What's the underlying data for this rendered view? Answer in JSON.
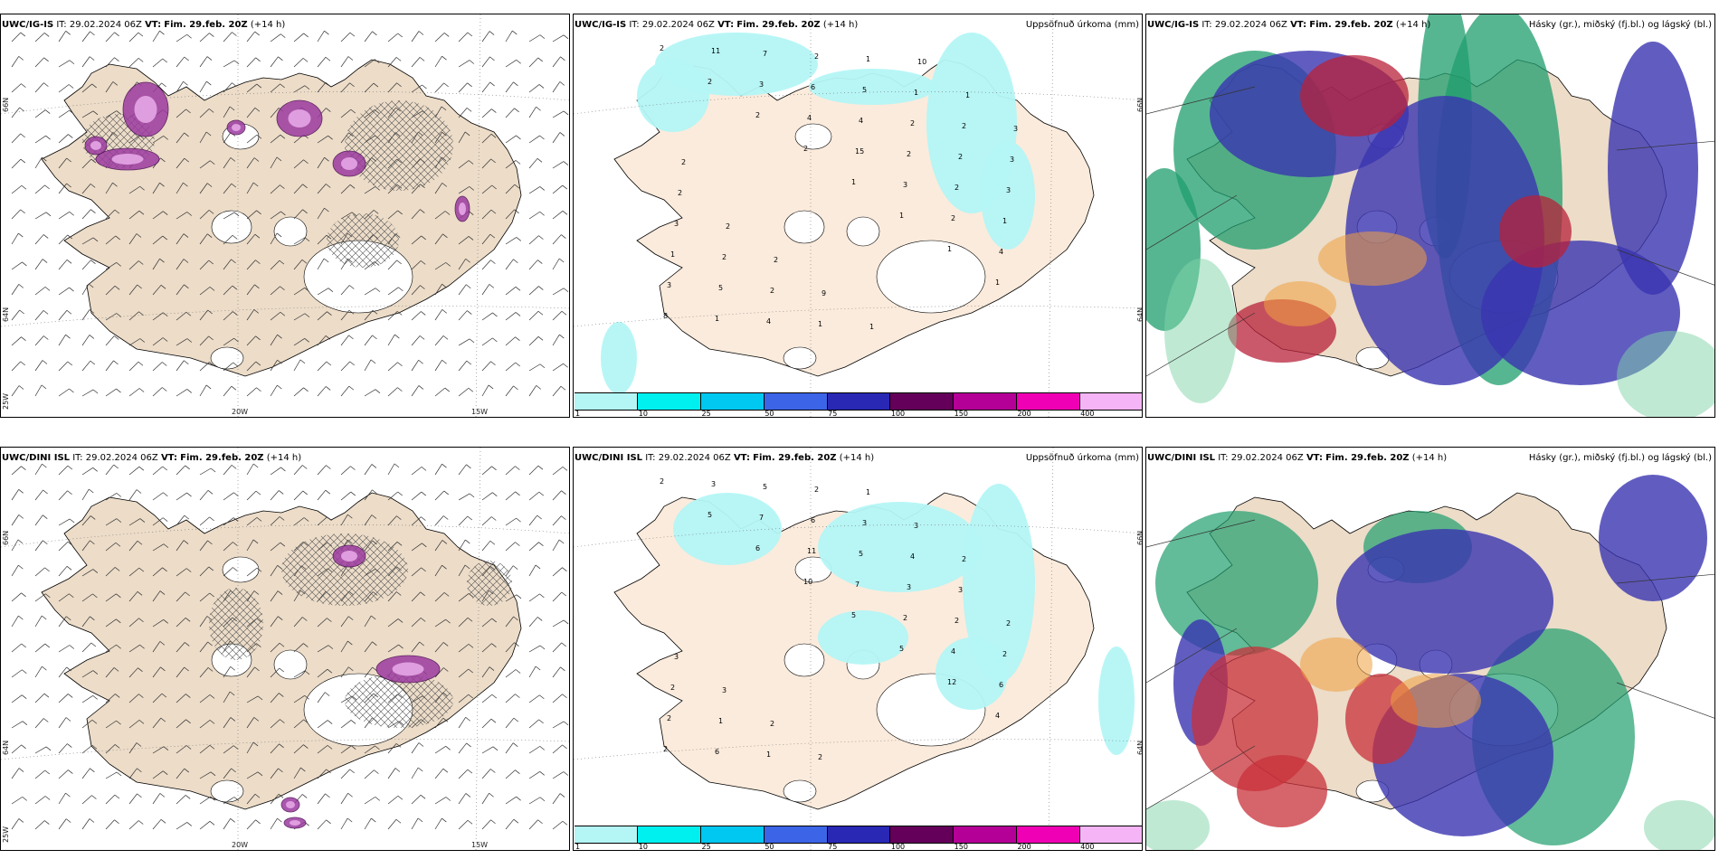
{
  "panels": [
    {
      "model": "UWC/IG-IS",
      "it": "IT: 29.02.2024 06Z",
      "vt_label": "VT:",
      "vt": "Fim. 29.feb. 20Z",
      "lead": "(+14 h)",
      "right": "",
      "lat_labels": [
        "66N",
        "64N",
        "25W"
      ],
      "lon_labels": [
        "20W",
        "15W"
      ]
    },
    {
      "model": "UWC/IG-IS",
      "it": "IT: 29.02.2024 06Z",
      "vt_label": "VT:",
      "vt": "Fim. 29.feb. 20Z",
      "lead": "(+14 h)",
      "right": "Uppsöfnuð úrkoma (mm)",
      "lat_labels": [
        "66N",
        "64N"
      ],
      "lon_labels": []
    },
    {
      "model": "UWC/IG-IS",
      "it": "IT: 29.02.2024 06Z",
      "vt_label": "VT:",
      "vt": "Fim. 29.feb. 20Z",
      "lead": "(+14 h)",
      "right": "Hásky (gr.), miðský (fj.bl.) og lágský (bl.)",
      "lat_labels": [],
      "lon_labels": []
    },
    {
      "model": "UWC/DINI ISL",
      "it": "IT: 29.02.2024 06Z",
      "vt_label": "VT:",
      "vt": "Fim. 29.feb. 20Z",
      "lead": "(+14 h)",
      "right": "",
      "lat_labels": [
        "66N",
        "64N",
        "25W"
      ],
      "lon_labels": [
        "20W",
        "15W"
      ]
    },
    {
      "model": "UWC/DINI ISL",
      "it": "IT: 29.02.2024 06Z",
      "vt_label": "VT:",
      "vt": "Fim. 29.feb. 20Z",
      "lead": "(+14 h)",
      "right": "Uppsöfnuð úrkoma (mm)",
      "lat_labels": [
        "66N",
        "64N"
      ],
      "lon_labels": []
    },
    {
      "model": "UWC/DINI ISL",
      "it": "IT: 29.02.2024 06Z",
      "vt_label": "VT:",
      "vt": "Fim. 29.feb. 20Z",
      "lead": "(+14 h)",
      "right": "Hásky (gr.), miðský (fj.bl.) og lágský (bl.)",
      "lat_labels": [],
      "lon_labels": []
    }
  ],
  "colorbar": {
    "ticks": [
      "1",
      "10",
      "25",
      "50",
      "75",
      "100",
      "150",
      "200",
      "400"
    ],
    "colors": [
      "#b4f5f5",
      "#00f0f0",
      "#00c8f0",
      "#3c64e6",
      "#2828b4",
      "#64005a",
      "#b40096",
      "#f000b4",
      "#f5b4f5"
    ]
  },
  "precip_labels_top": [
    "2",
    "2",
    "2",
    "2",
    "1",
    "1",
    "1",
    "1",
    "8",
    "11",
    "3",
    "4",
    "15",
    "3",
    "2",
    "4",
    "3",
    "1",
    "7",
    "6",
    "4",
    "2",
    "2",
    "1",
    "1",
    "5",
    "4",
    "2",
    "5",
    "2",
    "2",
    "3",
    "3",
    "2",
    "2",
    "1",
    "1",
    "1",
    "2",
    "3",
    "2",
    "2",
    "2",
    "9",
    "1",
    "10",
    "1",
    "3",
    "2"
  ],
  "precip_labels_bottom": [
    "2",
    "5",
    "6",
    "10",
    "5",
    "5",
    "12",
    "4",
    "2",
    "3",
    "7",
    "11",
    "7",
    "2",
    "4",
    "6",
    "2",
    "6",
    "5",
    "6",
    "5",
    "3",
    "2",
    "2",
    "2",
    "1",
    "1",
    "2",
    "3",
    "4",
    "3",
    "2",
    "3",
    "3",
    "2",
    "2",
    "1",
    "3",
    "2"
  ]
}
